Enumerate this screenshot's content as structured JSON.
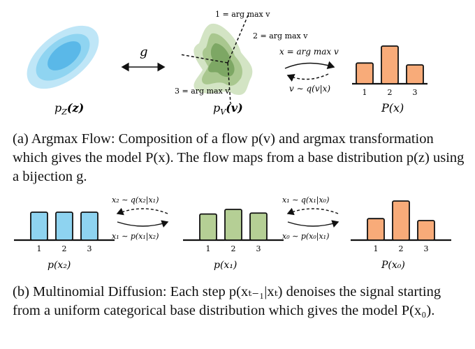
{
  "colors": {
    "blue": "#8ed3f0",
    "blue_stroke": "#1f6f99",
    "green": "#b5cf95",
    "orange": "#f8ab79",
    "ink": "#111111"
  },
  "panel_a": {
    "labels": {
      "pz": "p",
      "pz_sub": "Z",
      "pz_arg": "(z)",
      "pv": "p",
      "pv_sub": "V",
      "pv_arg": "(v)",
      "P": "P(x)",
      "g": "g",
      "forward": "x = arg max v",
      "backward": "v ∼ q(v|x)",
      "region1": "1 = arg max v",
      "region2": "2 = arg max v",
      "region3": "3 = arg max v"
    },
    "bar_values": [
      0.55,
      1.0,
      0.5
    ],
    "ticks": [
      "1",
      "2",
      "3"
    ]
  },
  "caption_a": "(a) Argmax Flow: Composition of a flow p(v) and argmax transformation which gives the model P(x). The flow maps from a base distribution p(z) using a bijection g.",
  "panel_b": {
    "bars_x2": [
      1.0,
      1.0,
      1.0
    ],
    "bars_x1": [
      0.85,
      1.0,
      0.88
    ],
    "bars_x0": [
      0.55,
      1.0,
      0.5
    ],
    "ticks": [
      "1",
      "2",
      "3"
    ],
    "label_x2": "p(x₂)",
    "label_x1": "p(x₁)",
    "label_x0": "P(x₀)",
    "q21": "x₂ ∼ q(x₂|x₁)",
    "p12": "x₁ ∼ p(x₁|x₂)",
    "q10": "x₁ ∼ q(x₁|x₀)",
    "p01": "x₀ ∼ p(x₀|x₁)"
  },
  "caption_b": "(b) Multinomial Diffusion: Each step p(xₜ₋₁|xₜ) denoises the signal starting from a uniform categorical base distribution which gives the model P(x₀)."
}
